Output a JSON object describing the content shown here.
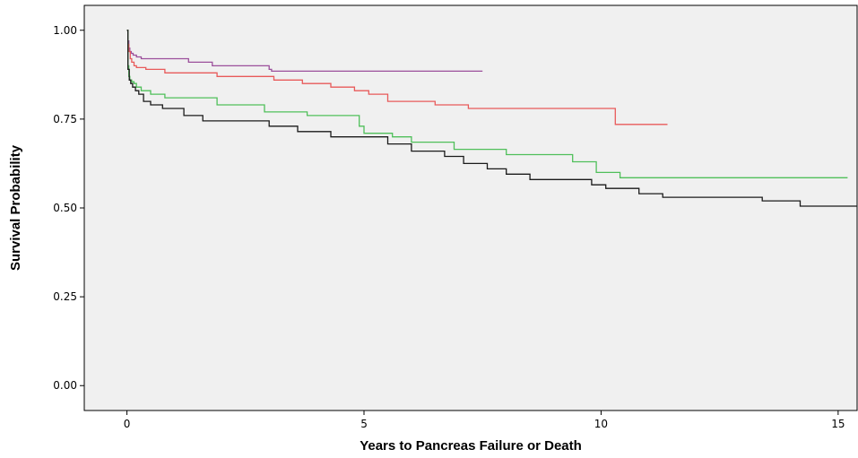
{
  "chart_data": {
    "type": "line",
    "step": true,
    "title": "",
    "xlabel": "Years to Pancreas Failure or Death",
    "ylabel": "Survival Probability",
    "xlim": [
      -0.9,
      15.4
    ],
    "ylim": [
      -0.07,
      1.07
    ],
    "xticks": [
      0,
      5,
      10,
      15
    ],
    "xtick_labels": [
      "0",
      "5",
      "10",
      "15"
    ],
    "yticks": [
      0.0,
      0.25,
      0.5,
      0.75,
      1.0
    ],
    "ytick_labels": [
      "0.00",
      "0.25",
      "0.50",
      "0.75",
      "1.00"
    ],
    "grid": false,
    "legend": "none",
    "background_color": "#f0f0f0",
    "series": [
      {
        "color": "#9b4f9b",
        "x": [
          0,
          0.02,
          0.04,
          0.06,
          0.09,
          0.13,
          0.2,
          0.3,
          0.5,
          1.3,
          1.8,
          3.0,
          3.05,
          7.5
        ],
        "y": [
          1.0,
          0.97,
          0.95,
          0.94,
          0.935,
          0.93,
          0.925,
          0.92,
          0.92,
          0.91,
          0.9,
          0.89,
          0.885,
          0.885
        ]
      },
      {
        "color": "#e85a5a",
        "x": [
          0,
          0.02,
          0.04,
          0.07,
          0.1,
          0.15,
          0.2,
          0.4,
          0.8,
          1.9,
          3.1,
          3.7,
          4.3,
          4.8,
          5.1,
          5.5,
          6.5,
          7.2,
          10.3,
          11.4
        ],
        "y": [
          1.0,
          0.96,
          0.94,
          0.92,
          0.91,
          0.9,
          0.895,
          0.89,
          0.88,
          0.87,
          0.86,
          0.85,
          0.84,
          0.83,
          0.82,
          0.8,
          0.79,
          0.78,
          0.735,
          0.735
        ],
        "steps_x": [
          7.2,
          10.3
        ],
        "steps_y": [
          0.775,
          0.775
        ]
      },
      {
        "color": "#4fbf5a",
        "x": [
          0,
          0.02,
          0.04,
          0.06,
          0.1,
          0.15,
          0.2,
          0.3,
          0.5,
          0.8,
          1.9,
          2.9,
          3.8,
          4.9,
          5.0,
          5.6,
          6.0,
          6.9,
          8.0,
          9.4,
          9.9,
          10.4,
          15.2
        ],
        "y": [
          1.0,
          0.9,
          0.87,
          0.86,
          0.855,
          0.85,
          0.84,
          0.83,
          0.82,
          0.81,
          0.79,
          0.77,
          0.76,
          0.73,
          0.71,
          0.7,
          0.685,
          0.665,
          0.65,
          0.63,
          0.6,
          0.585,
          0.585
        ]
      },
      {
        "color": "#1a1a1a",
        "x": [
          0,
          0.02,
          0.05,
          0.08,
          0.12,
          0.18,
          0.25,
          0.35,
          0.5,
          0.75,
          1.2,
          1.6,
          3.0,
          3.6,
          4.3,
          5.5,
          6.0,
          6.7,
          7.1,
          7.6,
          8.0,
          8.5,
          9.8,
          10.1,
          10.8,
          11.3,
          13.4,
          14.2,
          15.4
        ],
        "y": [
          1.0,
          0.89,
          0.86,
          0.85,
          0.84,
          0.83,
          0.82,
          0.8,
          0.79,
          0.78,
          0.76,
          0.745,
          0.73,
          0.715,
          0.7,
          0.68,
          0.66,
          0.645,
          0.625,
          0.61,
          0.595,
          0.58,
          0.565,
          0.555,
          0.54,
          0.53,
          0.52,
          0.505,
          0.505
        ]
      }
    ]
  }
}
